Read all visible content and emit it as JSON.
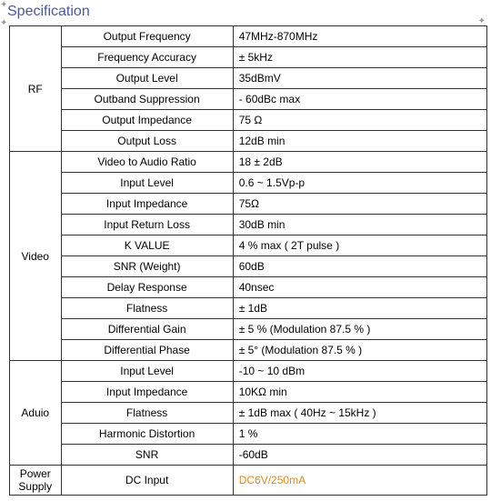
{
  "title": "Specification",
  "categories": [
    {
      "name": "RF",
      "rows": [
        {
          "param": "Output Frequency",
          "value": "47MHz-870MHz"
        },
        {
          "param": "Frequency Accuracy",
          "value": "±  5kHz"
        },
        {
          "param": "Output Level",
          "value": "35dBmV"
        },
        {
          "param": "Outband Suppression",
          "value": "- 60dBc max"
        },
        {
          "param": "Output Impedance",
          "value": "75 Ω"
        },
        {
          "param": "Output Loss",
          "value": "12dB min"
        }
      ]
    },
    {
      "name": "Video",
      "rows": [
        {
          "param": "Video to Audio Ratio",
          "value": "18 ± 2dB"
        },
        {
          "param": "Input Level",
          "value": "0.6 ~ 1.5Vp-p"
        },
        {
          "param": "Input Impedance",
          "value": "75Ω"
        },
        {
          "param": "Input Return Loss",
          "value": "30dB min"
        },
        {
          "param": "K VALUE",
          "value": "4 % max   ( 2T pulse  )"
        },
        {
          "param": "SNR  (Weight)",
          "value": "60dB"
        },
        {
          "param": "Delay Response",
          "value": "40nsec"
        },
        {
          "param": "Flatness",
          "value": "±  1dB"
        },
        {
          "param": "Differential Gain",
          "value": "± 5 %   (Modulation 87.5 %  )"
        },
        {
          "param": "Differential Phase",
          "value": "± 5°   (Modulation 87.5 %  )"
        }
      ]
    },
    {
      "name": "Aduio",
      "rows": [
        {
          "param": "Input Level",
          "value": "-10 ~ 10 dBm"
        },
        {
          "param": "Input Impedance",
          "value": "10KΩ min"
        },
        {
          "param": "Flatness",
          "value": "±  1dB max   ( 40Hz ~ 15kHz  )"
        },
        {
          "param": "Harmonic Distortion",
          "value": "1 %"
        },
        {
          "param": "SNR",
          "value": "-60dB"
        }
      ]
    },
    {
      "name": "Power Supply",
      "rows": [
        {
          "param": "DC Input",
          "value": "DC6V/250mA",
          "highlight": true
        }
      ]
    }
  ]
}
